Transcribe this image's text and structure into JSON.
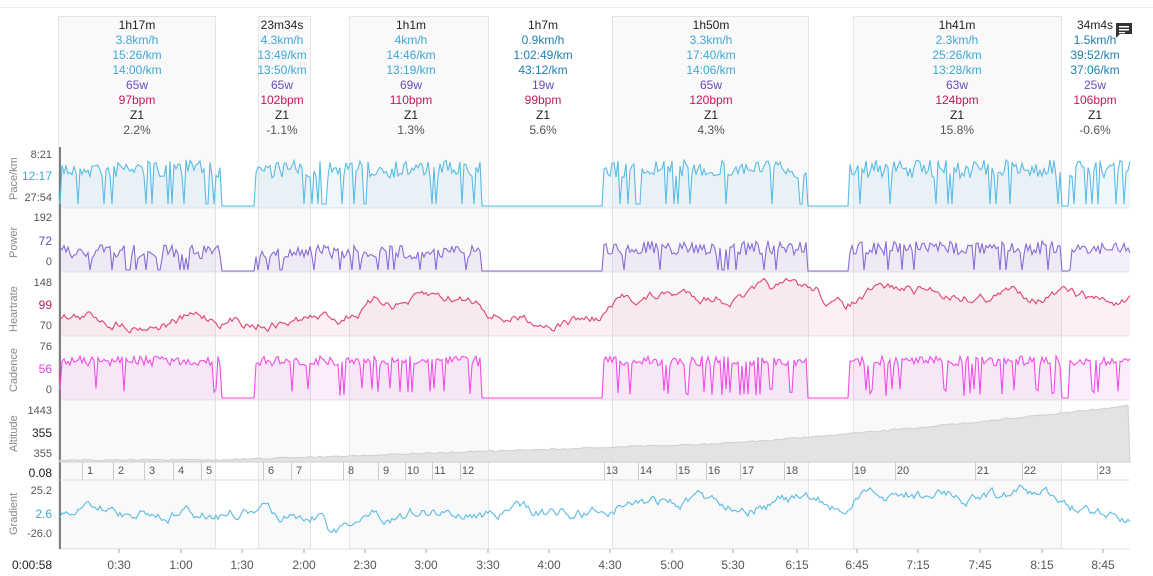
{
  "intervals": [
    {
      "dur": "1h17m",
      "speed": "3.8km/h",
      "pace1": "15:26/km",
      "pace2": "14:00/km",
      "power": "65w",
      "hr": "97bpm",
      "zone": "Z1",
      "grade": "2.2%"
    },
    {
      "dur": "23m34s",
      "speed": "4.3km/h",
      "pace1": "13:49/km",
      "pace2": "13:50/km",
      "power": "65w",
      "hr": "102bpm",
      "zone": "Z1",
      "grade": "-1.1%"
    },
    {
      "dur": "1h1m",
      "speed": "4km/h",
      "pace1": "14:46/km",
      "pace2": "13:19/km",
      "power": "69w",
      "hr": "110bpm",
      "zone": "Z1",
      "grade": "1.3%"
    },
    {
      "dur": "1h7m",
      "speed": "0.9km/h",
      "pace1": "1:02:49/km",
      "pace2": "43:12/km",
      "power": "19w",
      "hr": "99bpm",
      "zone": "Z1",
      "grade": "5.6%"
    },
    {
      "dur": "1h50m",
      "speed": "3.3km/h",
      "pace1": "17:40/km",
      "pace2": "14:06/km",
      "power": "65w",
      "hr": "120bpm",
      "zone": "Z1",
      "grade": "4.3%"
    },
    {
      "dur": "1h41m",
      "speed": "2.3km/h",
      "pace1": "25:26/km",
      "pace2": "13:28/km",
      "power": "63w",
      "hr": "124bpm",
      "zone": "Z1",
      "grade": "15.8%"
    },
    {
      "dur": "34m4s",
      "speed": "1.5km/h",
      "pace1": "39:52/km",
      "pace2": "37:06/km",
      "power": "25w",
      "hr": "106bpm",
      "zone": "Z1",
      "grade": "-0.6%"
    }
  ],
  "panels": {
    "pace": {
      "label": "Pace/km",
      "top": "8:21",
      "mid": "12:17",
      "bottom": "27:54",
      "color": "#5bbbe4"
    },
    "power": {
      "label": "Power",
      "top": "192",
      "mid": "72",
      "bottom": "0",
      "color": "#8a6bd6"
    },
    "heartrate": {
      "label": "Heartrate",
      "top": "148",
      "mid": "99",
      "bottom": "70",
      "color": "#e0456e"
    },
    "cadence": {
      "label": "Cadence",
      "top": "76",
      "mid": "56",
      "bottom": "0",
      "color": "#f04ee6"
    },
    "altitude": {
      "label": "Altitude",
      "top": "1443",
      "mid": "355",
      "bottom": "355",
      "color": "#cfcfcf"
    },
    "gradient": {
      "label": "Gradient",
      "top": "25.2",
      "mid": "2.6",
      "bottom": "-26.0",
      "color": "#5bbbe4"
    }
  },
  "laps_label": "0.08",
  "laps": [
    "1",
    "2",
    "3",
    "4",
    "5",
    "6",
    "7",
    "8",
    "9",
    "10",
    "11",
    "12",
    "13",
    "14",
    "15",
    "16",
    "17",
    "18",
    "19",
    "20",
    "21",
    "22",
    "23"
  ],
  "x_start": "0:00:58",
  "x_ticks": [
    "0:30",
    "1:00",
    "1:30",
    "2:00",
    "2:30",
    "3:00",
    "3:30",
    "4:00",
    "4:30",
    "5:00",
    "5:30",
    "6:15",
    "6:45",
    "7:15",
    "7:45",
    "8:15",
    "8:45"
  ],
  "icons": {
    "notes": "notes-icon"
  }
}
